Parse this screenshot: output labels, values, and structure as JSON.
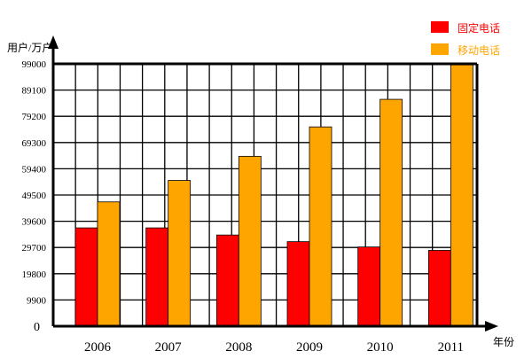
{
  "chart_data": {
    "type": "bar",
    "title": "",
    "ylabel": "用户/万户",
    "xlabel": "年份",
    "categories": [
      "2006",
      "2007",
      "2008",
      "2009",
      "2010",
      "2011"
    ],
    "y_ticks": [
      "0",
      "9900",
      "19800",
      "29700",
      "39600",
      "49500",
      "59400",
      "69300",
      "79200",
      "89100",
      "99000"
    ],
    "ylim": [
      0,
      99000
    ],
    "grid": true,
    "legend_position": "top-right",
    "series": [
      {
        "name": "固定电话",
        "color": "#ff0000",
        "values": [
          37100,
          37100,
          34400,
          31900,
          29900,
          28600
        ]
      },
      {
        "name": "移动电话",
        "color": "#ffa500",
        "values": [
          46900,
          55000,
          64100,
          75200,
          85600,
          98600
        ]
      }
    ]
  }
}
